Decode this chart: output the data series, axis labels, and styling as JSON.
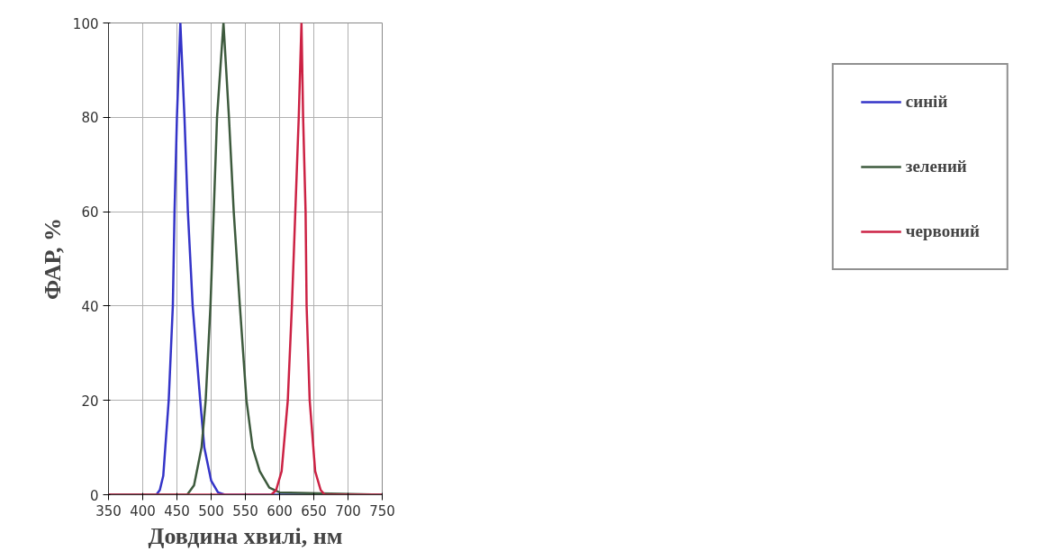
{
  "chart_data": {
    "type": "line",
    "xlabel": "Довдина хвилі, нм",
    "ylabel": "ФАР, %",
    "xlim": [
      350,
      750
    ],
    "ylim": [
      0,
      100
    ],
    "xticks": [
      350,
      400,
      450,
      500,
      550,
      600,
      650,
      700,
      750
    ],
    "yticks": [
      0,
      20,
      40,
      60,
      80,
      100
    ],
    "grid": true,
    "legend": "right",
    "line_style": "solid",
    "marker": "none",
    "series": [
      {
        "name": "синій",
        "color": "#3434c8",
        "x": [
          350,
          420,
          425,
          430,
          438,
          444,
          446.5,
          450,
          455,
          461,
          466,
          473,
          484,
          490,
          500,
          510,
          520,
          750
        ],
        "values": [
          0,
          0,
          1,
          4,
          20,
          40,
          60,
          80,
          100,
          80,
          60,
          40,
          20,
          10,
          3,
          0.5,
          0,
          0
        ]
      },
      {
        "name": "зелений",
        "color": "#3d5a3d",
        "x": [
          350,
          465,
          475,
          486,
          492,
          499,
          503.8,
          508.6,
          518,
          526,
          533,
          542,
          551.6,
          560.6,
          571,
          585,
          600,
          750
        ],
        "values": [
          0,
          0,
          2,
          10,
          20,
          40,
          60,
          80,
          100,
          80,
          60,
          40,
          20,
          10,
          5,
          1.5,
          0.5,
          0
        ]
      },
      {
        "name": "червоний",
        "color": "#cc2244",
        "x": [
          350,
          588,
          595,
          603,
          612,
          618,
          623,
          628,
          632,
          634.4,
          638,
          639.5,
          644,
          652,
          660,
          666,
          750
        ],
        "values": [
          0,
          0,
          1,
          5,
          20,
          40,
          60,
          80,
          100,
          80,
          60,
          40,
          20,
          5,
          1,
          0,
          0
        ]
      }
    ]
  }
}
